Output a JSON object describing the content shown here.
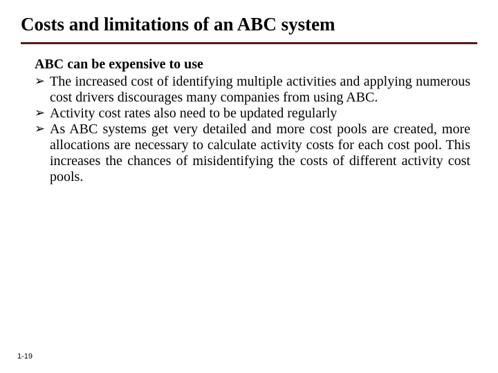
{
  "title": "Costs and limitations of an ABC system",
  "subtitle": "ABC can be expensive to use",
  "bullets": [
    "The increased cost of identifying multiple activities and applying numerous cost drivers discourages many companies from using ABC.",
    " Activity cost rates also need to be updated regularly",
    "As ABC systems get very detailed and more cost pools are created, more allocations are necessary to calculate activity costs for each cost pool. This increases the chances of misidentifying the costs of different activity cost pools."
  ],
  "bullet_marker": "➢",
  "page_number": "1-19",
  "colors": {
    "background": "#ffffff",
    "text": "#000000",
    "underline": "#5a1818"
  },
  "fonts": {
    "title_size": 27,
    "body_size": 20,
    "page_number_size": 11
  }
}
